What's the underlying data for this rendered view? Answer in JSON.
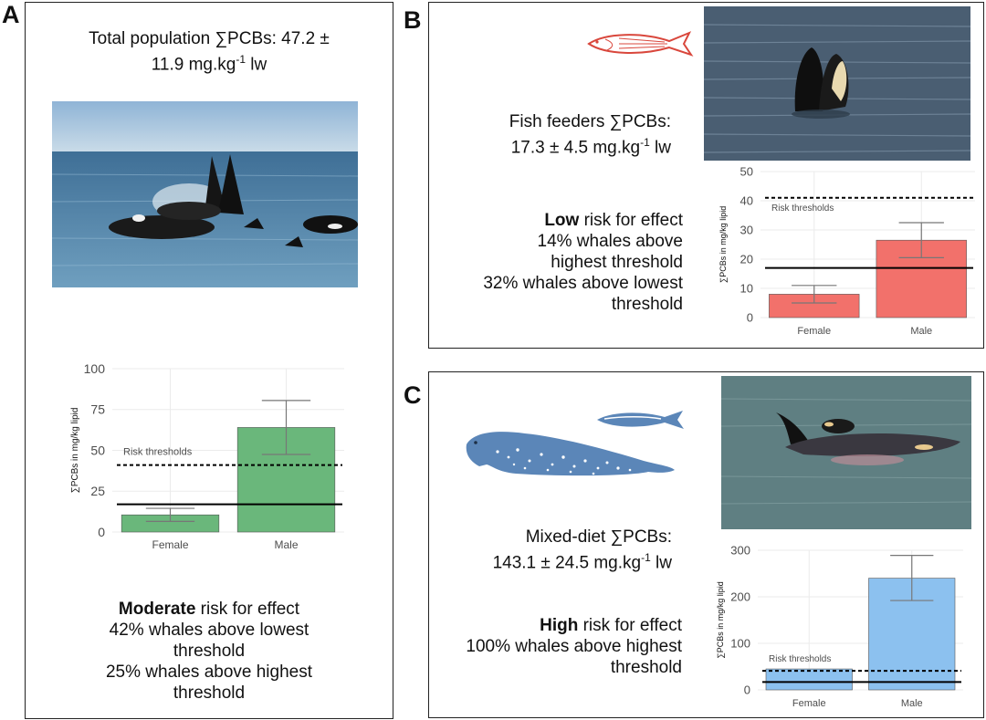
{
  "panel_a": {
    "letter": "A",
    "title_line1": "Total population ∑PCBs: 47.2 ±",
    "title_line2_pre": "11.9 mg.kg",
    "title_line2_sup": "-1",
    "title_line2_post": " lw",
    "risk_bold": "Moderate",
    "risk_rest": " risk for effect",
    "risk_line2": "42% whales above lowest",
    "risk_line3": "threshold",
    "risk_line4": "25% whales above highest",
    "risk_line5": "threshold"
  },
  "panel_b": {
    "letter": "B",
    "title_line1": "Fish feeders ∑PCBs:",
    "title_line2_pre": "17.3 ± 4.5 mg.kg",
    "title_line2_sup": "-1",
    "title_line2_post": " lw",
    "risk_bold": "Low",
    "risk_rest": " risk for effect",
    "risk_line2": "14% whales above",
    "risk_line3": "highest threshold",
    "risk_line4": "32% whales above lowest",
    "risk_line5": "threshold"
  },
  "panel_c": {
    "letter": "C",
    "title_line1": "Mixed-diet ∑PCBs:",
    "title_line2_pre": "143.1 ± 24.5 mg.kg",
    "title_line2_sup": "-1",
    "title_line2_post": " lw",
    "risk_bold": "High",
    "risk_rest": " risk for effect",
    "risk_line2": "100% whales above highest",
    "risk_line3": "threshold"
  },
  "colors": {
    "green": "#6ab77b",
    "red": "#f2716b",
    "blue": "#8cc1ef",
    "fish_red": "#d9473c",
    "steel_blue": "#5b86b8"
  },
  "chart_data": [
    {
      "id": "A",
      "type": "bar",
      "categories": [
        "Female",
        "Male"
      ],
      "values": [
        10.5,
        64
      ],
      "errors": [
        [
          6.5,
          14.5
        ],
        [
          47.5,
          80.5
        ]
      ],
      "ylabel": "∑PCBs in mg/kg lipid",
      "ylim": [
        0,
        100
      ],
      "yticks": [
        0,
        25,
        50,
        75,
        100
      ],
      "thresholds": {
        "high": 41,
        "low": 17
      },
      "threshold_label": "Risk thresholds",
      "color": "#6ab77b",
      "grid": true
    },
    {
      "id": "B",
      "type": "bar",
      "categories": [
        "Female",
        "Male"
      ],
      "values": [
        8,
        26.5
      ],
      "errors": [
        [
          5,
          11
        ],
        [
          20.5,
          32.5
        ]
      ],
      "ylabel": "∑PCBs in mg/kg lipid",
      "ylim": [
        0,
        50
      ],
      "yticks": [
        0,
        10,
        20,
        30,
        40,
        50
      ],
      "thresholds": {
        "high": 41,
        "low": 17
      },
      "threshold_label": "Risk thresholds",
      "color": "#f2716b",
      "grid": true
    },
    {
      "id": "C",
      "type": "bar",
      "categories": [
        "Female",
        "Male"
      ],
      "values": [
        45,
        240
      ],
      "errors": [
        null,
        [
          192,
          289
        ]
      ],
      "ylabel": "∑PCBs in mg/kg lipid",
      "ylim": [
        0,
        300
      ],
      "yticks": [
        0,
        100,
        200,
        300
      ],
      "thresholds": {
        "high": 41,
        "low": 17
      },
      "threshold_label": "Risk thresholds",
      "color": "#8cc1ef",
      "grid": true
    }
  ]
}
